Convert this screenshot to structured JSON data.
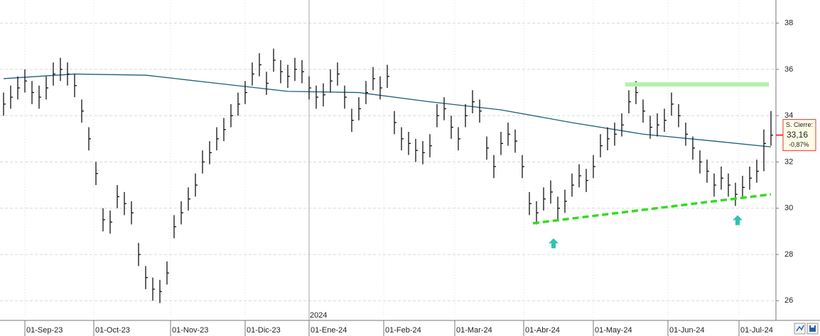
{
  "chart_data": {
    "type": "ohlc",
    "xlim": [
      -0.5,
      108.7
    ],
    "ylim": [
      25.15,
      39.0
    ],
    "yticks": [
      26,
      28,
      30,
      32,
      34,
      36,
      38
    ],
    "grid": true,
    "xticks": [
      {
        "value": 3.0,
        "label": "01-Sep-23"
      },
      {
        "value": 12.7,
        "label": "01-Oct-23"
      },
      {
        "value": 23.5,
        "label": "01-Nov-23"
      },
      {
        "value": 34.0,
        "label": "01-Dic-23"
      },
      {
        "value": 43.0,
        "label": "01-Ene-24"
      },
      {
        "value": 53.5,
        "label": "01-Feb-24"
      },
      {
        "value": 63.5,
        "label": "01-Mar-24"
      },
      {
        "value": 73.2,
        "label": "01-Abr-24"
      },
      {
        "value": 83.0,
        "label": "01-May-24"
      },
      {
        "value": 93.5,
        "label": "01-Jun-24"
      },
      {
        "value": 103.5,
        "label": "01-Jul-24"
      }
    ],
    "year_marker": {
      "value": 43.0,
      "label": "2024"
    },
    "bar_color": "#111111",
    "high": [
      35.0,
      35.3,
      35.7,
      36.0,
      35.5,
      35.3,
      35.7,
      36.3,
      36.5,
      36.3,
      35.8,
      34.7,
      33.5,
      32.0,
      30.0,
      29.9,
      31.0,
      30.7,
      30.3,
      28.5,
      27.5,
      27.0,
      26.9,
      27.7,
      29.7,
      30.3,
      30.9,
      31.5,
      32.5,
      32.9,
      33.5,
      33.9,
      34.5,
      35.0,
      35.5,
      36.3,
      36.7,
      35.9,
      36.9,
      36.4,
      36.2,
      36.5,
      36.4,
      35.7,
      35.3,
      35.4,
      36.0,
      36.3,
      35.3,
      34.3,
      34.8,
      35.5,
      36.1,
      35.7,
      36.2,
      34.2,
      33.5,
      33.3,
      33.0,
      32.9,
      33.2,
      34.5,
      34.8,
      34.0,
      33.5,
      34.5,
      35.1,
      34.7,
      33.1,
      32.3,
      33.3,
      33.7,
      33.4,
      32.3,
      30.7,
      30.3,
      30.9,
      31.2,
      30.5,
      30.8,
      31.5,
      31.9,
      31.7,
      32.3,
      33.2,
      33.5,
      33.7,
      34.1,
      35.1,
      35.5,
      34.7,
      34.0,
      34.1,
      34.3,
      35.0,
      34.5,
      33.7,
      33.1,
      32.5,
      32.1,
      31.5,
      31.8,
      31.5,
      31.1,
      31.4,
      31.8,
      32.1,
      33.4,
      34.2
    ],
    "low": [
      34.0,
      34.3,
      34.7,
      35.0,
      34.5,
      34.3,
      34.7,
      35.3,
      35.5,
      35.3,
      34.8,
      33.7,
      32.5,
      31.0,
      29.0,
      28.9,
      30.0,
      29.7,
      29.3,
      27.5,
      26.5,
      26.0,
      25.9,
      26.7,
      28.7,
      29.3,
      29.9,
      30.5,
      31.5,
      31.9,
      32.5,
      32.9,
      33.5,
      34.0,
      34.5,
      35.3,
      35.7,
      34.9,
      35.9,
      35.4,
      35.2,
      35.5,
      35.4,
      34.7,
      34.3,
      34.4,
      35.0,
      35.3,
      34.3,
      33.3,
      33.8,
      34.5,
      35.1,
      34.7,
      35.2,
      33.2,
      32.5,
      32.3,
      32.0,
      31.9,
      32.2,
      33.5,
      33.8,
      33.0,
      32.5,
      33.5,
      34.1,
      33.7,
      32.1,
      31.3,
      32.3,
      32.7,
      32.4,
      31.3,
      29.7,
      29.3,
      29.9,
      30.2,
      29.5,
      29.8,
      30.5,
      30.9,
      30.7,
      31.3,
      32.2,
      32.5,
      32.7,
      33.1,
      34.1,
      34.5,
      33.7,
      33.0,
      33.1,
      33.3,
      34.0,
      33.5,
      32.7,
      32.1,
      31.5,
      31.1,
      30.5,
      30.8,
      30.5,
      30.1,
      30.4,
      30.8,
      31.1,
      31.6,
      32.7
    ],
    "close": [
      34.5,
      34.8,
      35.2,
      35.5,
      35.0,
      34.8,
      35.2,
      35.8,
      36.0,
      35.8,
      35.3,
      34.2,
      33.0,
      31.5,
      29.5,
      29.4,
      30.5,
      30.2,
      29.8,
      28.0,
      27.0,
      26.5,
      26.4,
      27.2,
      29.2,
      29.8,
      30.4,
      31.0,
      32.0,
      32.4,
      33.0,
      33.4,
      34.0,
      34.5,
      35.0,
      35.8,
      36.2,
      35.4,
      36.4,
      35.9,
      35.7,
      36.0,
      35.9,
      35.2,
      34.8,
      34.9,
      35.5,
      35.8,
      34.8,
      33.8,
      34.3,
      35.0,
      35.6,
      35.2,
      35.7,
      33.7,
      33.0,
      32.8,
      32.5,
      32.4,
      32.7,
      34.0,
      34.3,
      33.5,
      33.0,
      34.0,
      34.6,
      34.2,
      32.6,
      31.8,
      32.8,
      33.2,
      32.9,
      31.8,
      30.2,
      29.8,
      30.4,
      30.7,
      30.0,
      30.3,
      31.0,
      31.4,
      31.2,
      31.8,
      32.7,
      33.0,
      33.2,
      33.6,
      34.6,
      35.0,
      34.2,
      33.5,
      33.6,
      33.8,
      34.5,
      34.0,
      33.2,
      32.6,
      32.0,
      31.6,
      31.0,
      31.3,
      31.0,
      30.6,
      30.9,
      31.3,
      31.6,
      32.8,
      33.16
    ],
    "moving_average": {
      "color": "#1b5f78",
      "x": [
        0,
        10,
        20,
        30,
        40,
        50,
        60,
        70,
        80,
        90,
        100,
        108
      ],
      "values": [
        35.6,
        35.8,
        35.75,
        35.4,
        35.05,
        35.0,
        34.6,
        34.25,
        33.7,
        33.2,
        32.9,
        32.65
      ]
    },
    "resistance": {
      "color": "#b4f2ab",
      "x": [
        87.5,
        107.7
      ],
      "y": 35.35
    },
    "trendline": {
      "color": "#33dd1e",
      "x": [
        74.5,
        108.0
      ],
      "y": [
        29.35,
        30.6
      ]
    },
    "arrows": {
      "color": "#2cc4b4",
      "x": [
        77.4,
        103.3
      ],
      "y": [
        28.45,
        29.45
      ]
    },
    "last_price": {
      "title": "S. Cierre:",
      "price": "33,16",
      "change": "-0,87%",
      "value": 33.16
    }
  }
}
